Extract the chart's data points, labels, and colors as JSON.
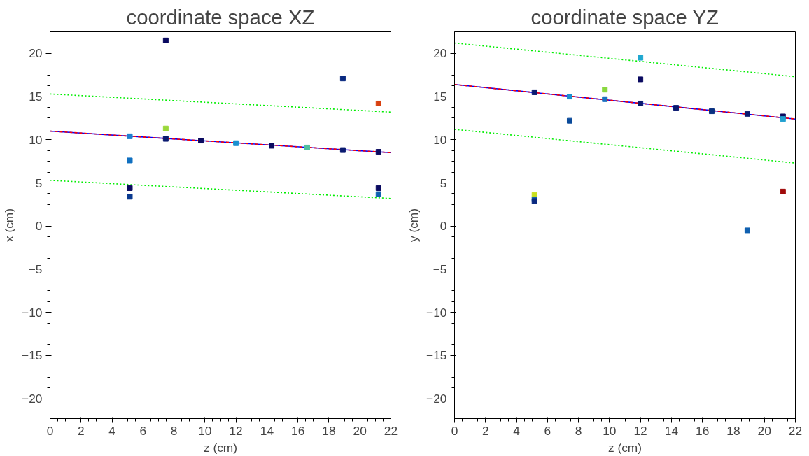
{
  "chart_data": [
    {
      "type": "scatter",
      "title": "coordinate space XZ",
      "xlabel": "z (cm)",
      "ylabel": "x (cm)",
      "xlim": [
        0,
        22
      ],
      "ylim": [
        -22.3,
        22.5
      ],
      "xticks": [
        0,
        2,
        4,
        6,
        8,
        10,
        12,
        14,
        16,
        18,
        20,
        22
      ],
      "yticks": [
        -20,
        -15,
        -10,
        -5,
        0,
        5,
        10,
        15,
        20
      ],
      "grid": false,
      "series": [
        {
          "marker": "square",
          "x": [
            5.15,
            5.15,
            5.15,
            5.15,
            7.47,
            7.47,
            7.47,
            9.74,
            12.0,
            14.3,
            16.6,
            18.9,
            18.9,
            21.2,
            21.2,
            21.2,
            21.2
          ],
          "values": [
            10.4,
            7.6,
            4.4,
            3.4,
            21.5,
            11.3,
            10.1,
            9.9,
            9.6,
            9.3,
            9.1,
            17.1,
            8.8,
            14.2,
            8.6,
            4.4,
            3.7
          ],
          "colors": [
            "#1f80d0",
            "#1070c0",
            "#0a0a60",
            "#0a3a90",
            "#0a0a60",
            "#9ad83a",
            "#0a1a70",
            "#0a0a60",
            "#1a90d0",
            "#0a0a60",
            "#4fc0a0",
            "#0a2a80",
            "#0a1a70",
            "#d84010",
            "#0a0a60",
            "#0a0a60",
            "#1060b0"
          ]
        },
        {
          "type": "line",
          "x": [
            0,
            22
          ],
          "values": [
            11.0,
            8.5
          ],
          "color": "#0000ff",
          "line_style": "solid"
        },
        {
          "type": "line",
          "x": [
            0,
            22
          ],
          "values": [
            11.0,
            8.5
          ],
          "color": "#ff0000",
          "line_style": "dashed"
        },
        {
          "type": "line",
          "x": [
            0,
            22
          ],
          "values": [
            15.3,
            13.2
          ],
          "color": "#00ee00",
          "line_style": "dotted"
        },
        {
          "type": "line",
          "x": [
            0,
            22
          ],
          "values": [
            5.3,
            3.2
          ],
          "color": "#00ee00",
          "line_style": "dotted"
        }
      ]
    },
    {
      "type": "scatter",
      "title": "coordinate space YZ",
      "xlabel": "z (cm)",
      "ylabel": "y (cm)",
      "xlim": [
        0,
        22
      ],
      "ylim": [
        -22.3,
        22.5
      ],
      "xticks": [
        0,
        2,
        4,
        6,
        8,
        10,
        12,
        14,
        16,
        18,
        20,
        22
      ],
      "yticks": [
        -20,
        -15,
        -10,
        -5,
        0,
        5,
        10,
        15,
        20
      ],
      "grid": false,
      "series": [
        {
          "marker": "square",
          "x": [
            5.16,
            5.16,
            5.16,
            5.16,
            7.43,
            7.43,
            9.7,
            9.7,
            12.0,
            12.0,
            12.0,
            14.3,
            16.6,
            18.9,
            18.9,
            21.2,
            21.2,
            21.2
          ],
          "values": [
            15.5,
            3.6,
            3.1,
            2.9,
            15.0,
            12.2,
            15.8,
            14.7,
            19.5,
            17.0,
            14.2,
            13.7,
            13.3,
            13.0,
            -0.5,
            12.7,
            12.4,
            4.0
          ],
          "colors": [
            "#0a1a70",
            "#c8e020",
            "#1060b0",
            "#0a2a80",
            "#1a90d0",
            "#0a4a9a",
            "#8ad840",
            "#1a70c0",
            "#20a8d0",
            "#0a0a60",
            "#0a1a70",
            "#0a1a70",
            "#0a3080",
            "#0a1a70",
            "#1060b0",
            "#0a0a60",
            "#20a0d0",
            "#a00a0a"
          ]
        },
        {
          "type": "line",
          "x": [
            0,
            22
          ],
          "values": [
            16.4,
            12.4
          ],
          "color": "#0000ff",
          "line_style": "solid"
        },
        {
          "type": "line",
          "x": [
            0,
            22
          ],
          "values": [
            16.4,
            12.4
          ],
          "color": "#ff0000",
          "line_style": "dashed"
        },
        {
          "type": "line",
          "x": [
            0,
            22
          ],
          "values": [
            21.2,
            17.3
          ],
          "color": "#00ee00",
          "line_style": "dotted"
        },
        {
          "type": "line",
          "x": [
            0,
            22
          ],
          "values": [
            11.2,
            7.3
          ],
          "color": "#00ee00",
          "line_style": "dotted"
        }
      ]
    }
  ]
}
